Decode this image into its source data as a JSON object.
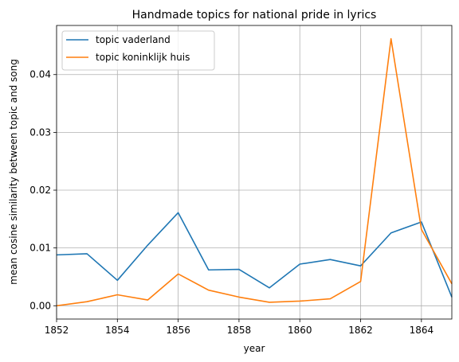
{
  "chart_data": {
    "type": "line",
    "title": "Handmade topics for national pride in lyrics",
    "xlabel": "year",
    "ylabel": "mean cosine similarity between topic and song",
    "xlim": [
      1852,
      1865
    ],
    "ylim": [
      -0.0023,
      0.0485
    ],
    "x_ticks": [
      1852,
      1854,
      1856,
      1858,
      1860,
      1862,
      1864
    ],
    "x_tick_labels": [
      "1852",
      "1854",
      "1856",
      "1858",
      "1860",
      "1862",
      "1864"
    ],
    "y_ticks": [
      0.0,
      0.01,
      0.02,
      0.03,
      0.04
    ],
    "y_tick_labels": [
      "0.00",
      "0.01",
      "0.02",
      "0.03",
      "0.04"
    ],
    "grid": true,
    "legend_position": "top-left",
    "x": [
      1852,
      1853,
      1854,
      1855,
      1856,
      1857,
      1858,
      1859,
      1860,
      1861,
      1862,
      1863,
      1864,
      1865
    ],
    "series": [
      {
        "name": "topic vaderland",
        "color": "#1f77b4",
        "values": [
          0.0088,
          0.009,
          0.0044,
          0.0105,
          0.0161,
          0.0062,
          0.0063,
          0.0031,
          0.0072,
          0.008,
          0.0069,
          0.0126,
          0.0145,
          0.0015
        ]
      },
      {
        "name": "topic koninklijk huis",
        "color": "#ff7f0e",
        "values": [
          0.0,
          0.0007,
          0.0019,
          0.001,
          0.0055,
          0.0027,
          0.0015,
          0.0006,
          0.0008,
          0.0012,
          0.0042,
          0.0462,
          0.0132,
          0.0038
        ]
      }
    ]
  }
}
